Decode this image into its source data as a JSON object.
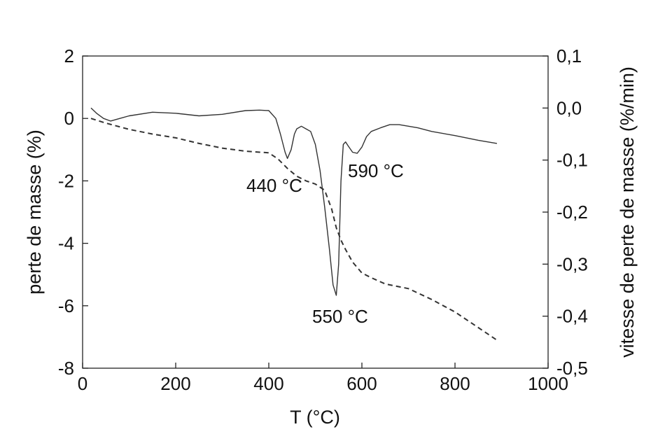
{
  "chart_data": {
    "type": "line",
    "xlabel": "T (°C)",
    "ylabel_left": "perte de masse (%)",
    "ylabel_right": "vitesse de perte de masse (%/min)",
    "xlim": [
      0,
      1000
    ],
    "ylim_left": [
      -8,
      2
    ],
    "ylim_right": [
      -0.5,
      0.1
    ],
    "x_ticks": [
      "0",
      "200",
      "400",
      "600",
      "800",
      "1000"
    ],
    "y_left_ticks": [
      "2",
      "0",
      "-2",
      "-4",
      "-6",
      "-8"
    ],
    "y_right_ticks": [
      "0,1",
      "0,0",
      "-0,1",
      "-0,2",
      "-0,3",
      "-0,4",
      "-0,5"
    ],
    "grid": false,
    "series": [
      {
        "style": "solid",
        "axis": "right",
        "x": [
          18,
          30,
          45,
          60,
          80,
          100,
          150,
          200,
          250,
          300,
          350,
          380,
          400,
          415,
          425,
          435,
          440,
          448,
          455,
          460,
          470,
          480,
          490,
          500,
          510,
          520,
          530,
          538,
          545,
          550,
          555,
          560,
          565,
          570,
          580,
          590,
          600,
          610,
          620,
          640,
          660,
          680,
          700,
          720,
          750,
          800,
          850,
          890
        ],
        "y": [
          0.0,
          -0.01,
          -0.02,
          -0.025,
          -0.02,
          -0.015,
          -0.008,
          -0.01,
          -0.015,
          -0.012,
          -0.005,
          -0.004,
          -0.005,
          -0.02,
          -0.05,
          -0.085,
          -0.097,
          -0.08,
          -0.05,
          -0.04,
          -0.035,
          -0.04,
          -0.045,
          -0.07,
          -0.12,
          -0.19,
          -0.27,
          -0.34,
          -0.36,
          -0.3,
          -0.14,
          -0.07,
          -0.065,
          -0.072,
          -0.085,
          -0.087,
          -0.075,
          -0.055,
          -0.045,
          -0.038,
          -0.032,
          -0.032,
          -0.035,
          -0.038,
          -0.045,
          -0.053,
          -0.062,
          -0.068
        ]
      },
      {
        "style": "dashed",
        "axis": "left",
        "x": [
          18,
          50,
          100,
          150,
          200,
          250,
          300,
          350,
          400,
          420,
          440,
          460,
          480,
          500,
          520,
          535,
          545,
          555,
          565,
          580,
          600,
          620,
          650,
          700,
          750,
          800,
          850,
          890
        ],
        "y": [
          0.0,
          -0.15,
          -0.35,
          -0.5,
          -0.62,
          -0.8,
          -0.95,
          -1.05,
          -1.1,
          -1.3,
          -1.6,
          -1.85,
          -2.0,
          -2.1,
          -2.3,
          -2.9,
          -3.5,
          -3.9,
          -4.2,
          -4.6,
          -4.95,
          -5.1,
          -5.3,
          -5.45,
          -5.8,
          -6.2,
          -6.7,
          -7.1
        ]
      }
    ],
    "annotations": [
      "440 °C",
      "550 °C",
      "590 °C"
    ]
  }
}
